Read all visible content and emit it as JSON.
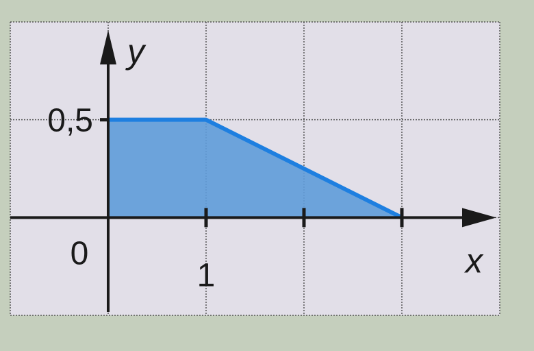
{
  "chart_data": {
    "type": "area",
    "x": [
      0,
      1,
      3
    ],
    "y": [
      0.5,
      0.5,
      0
    ],
    "xlabel": "x",
    "ylabel": "y",
    "xlim": [
      -1,
      4
    ],
    "ylim": [
      -0.5,
      1
    ],
    "grid": true,
    "grid_step_x": 1,
    "grid_step_y": 0.5,
    "x_ticks": [
      1,
      2,
      3
    ],
    "x_tick_labels": {
      "1": "1"
    },
    "y_tick_labels": {
      "0.5": "0,5"
    },
    "origin_label": "0",
    "colors": {
      "line": "#1e7fe0",
      "fill": "#5f9cd9",
      "plot_background": "#e2dfe8",
      "page_background": "#c5cfbd"
    }
  }
}
